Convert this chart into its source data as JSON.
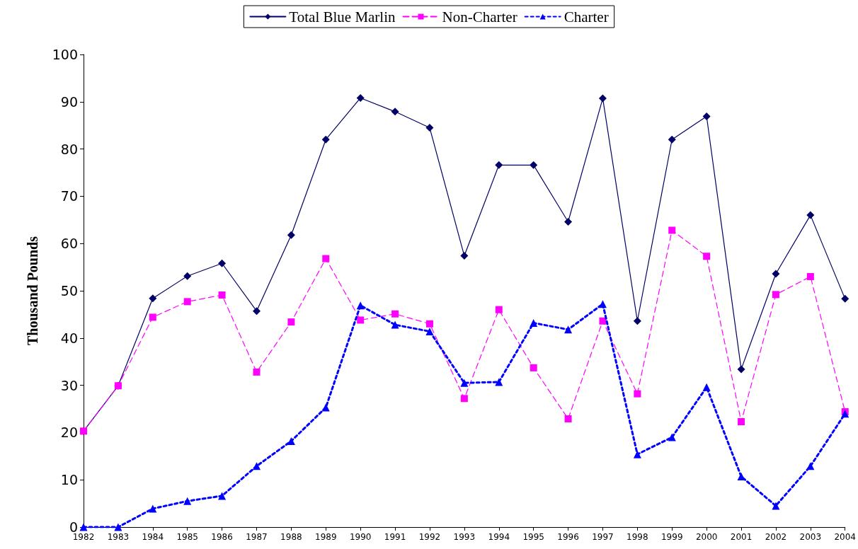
{
  "chart_data": {
    "type": "line",
    "ylabel": "Thousand Pounds",
    "categories": [
      "1982",
      "1983",
      "1984",
      "1985",
      "1986",
      "1987",
      "1988",
      "1989",
      "1990",
      "1991",
      "1992",
      "1993",
      "1994",
      "1995",
      "1996",
      "1997",
      "1998",
      "1999",
      "2000",
      "2001",
      "2002",
      "2003",
      "2004"
    ],
    "series": [
      {
        "name": "Total Blue Marlin",
        "color": "#000066",
        "marker": "diamond",
        "line_style": "solid",
        "values": [
          20.3,
          29.9,
          48.4,
          53.1,
          55.8,
          45.7,
          61.8,
          82.0,
          90.8,
          87.9,
          84.5,
          57.4,
          76.6,
          76.6,
          64.6,
          90.7,
          43.6,
          82.0,
          86.9,
          33.4,
          53.6,
          66.0,
          48.3
        ]
      },
      {
        "name": "Non-Charter",
        "color": "#ff00ff",
        "marker": "square",
        "line_style": "dashed",
        "values": [
          20.3,
          29.9,
          44.4,
          47.7,
          49.1,
          32.8,
          43.4,
          56.8,
          43.8,
          45.1,
          43.0,
          27.2,
          46.0,
          33.7,
          22.9,
          43.6,
          28.2,
          62.8,
          57.3,
          22.3,
          49.2,
          53.0,
          24.4
        ]
      },
      {
        "name": "Charter",
        "color": "#0000ff",
        "marker": "triangle",
        "line_style": "dotted",
        "values": [
          0,
          0,
          3.9,
          5.5,
          6.6,
          12.9,
          18.2,
          25.3,
          46.9,
          42.8,
          41.4,
          30.5,
          30.7,
          43.2,
          41.8,
          47.2,
          15.4,
          19.0,
          29.6,
          10.7,
          4.5,
          12.9,
          24.0
        ]
      }
    ],
    "ylim": [
      0,
      100
    ],
    "yticks": [
      0,
      10,
      20,
      30,
      40,
      50,
      60,
      70,
      80,
      90,
      100
    ],
    "grid": false,
    "legend": "top"
  }
}
